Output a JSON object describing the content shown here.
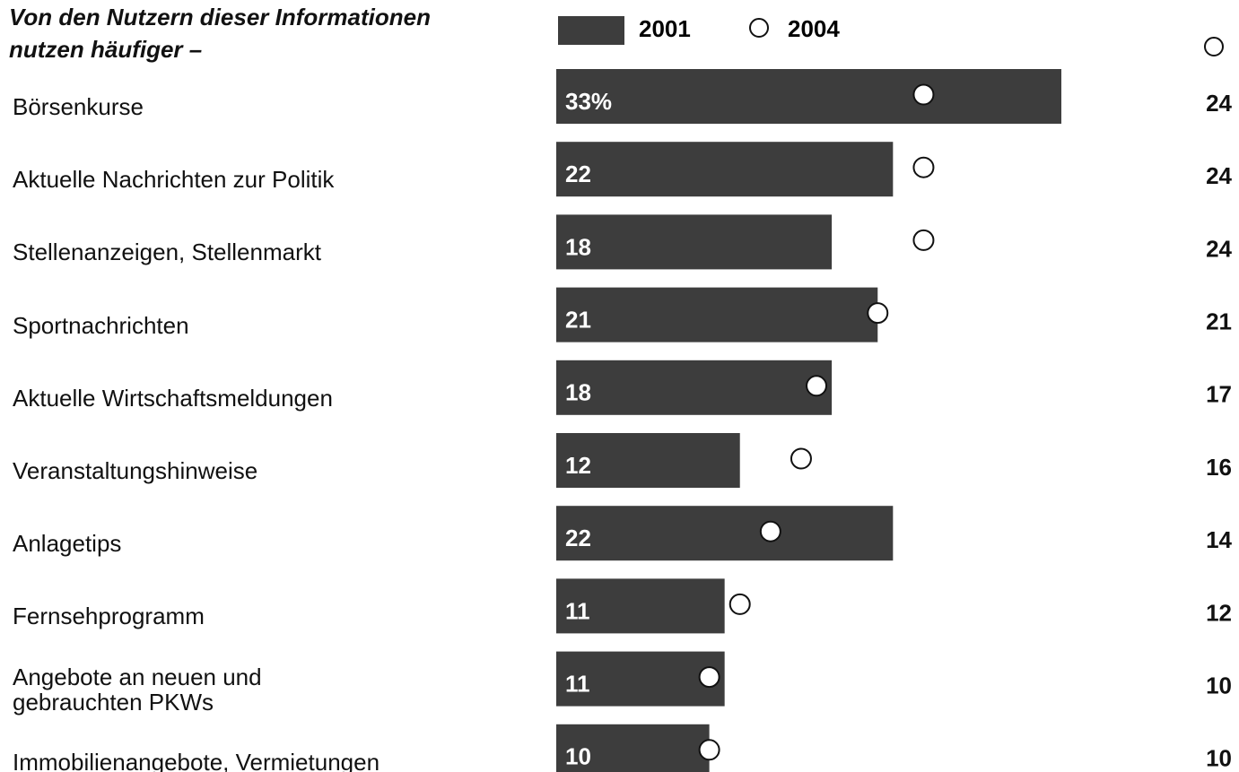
{
  "chart_data": {
    "type": "bar",
    "title": [
      "Von den Nutzern dieser Informationen",
      "nutzen häufiger –"
    ],
    "categories": [
      "Börsenkurse",
      "Aktuelle Nachrichten zur Politik",
      "Stellenanzeigen, Stellenmarkt",
      "Sportnachrichten",
      "Aktuelle Wirtschaftsmeldungen",
      "Veranstaltungshinweise",
      "Anlagetips",
      "Fernsehprogramm",
      "Angebote an neuen und\ngebrauchten PKWs",
      "Immobilienangebote, Vermietungen"
    ],
    "series": [
      {
        "name": "2001",
        "color": "#3d3d3d",
        "values": [
          33,
          22,
          18,
          21,
          18,
          12,
          22,
          11,
          11,
          10
        ],
        "value_labels": [
          "33%",
          "22",
          "18",
          "21",
          "18",
          "12",
          "22",
          "11",
          "11",
          "10"
        ]
      },
      {
        "name": "2004",
        "color": "#ffffff",
        "values": [
          24,
          24,
          24,
          21,
          17,
          16,
          14,
          12,
          10,
          10
        ]
      }
    ]
  }
}
